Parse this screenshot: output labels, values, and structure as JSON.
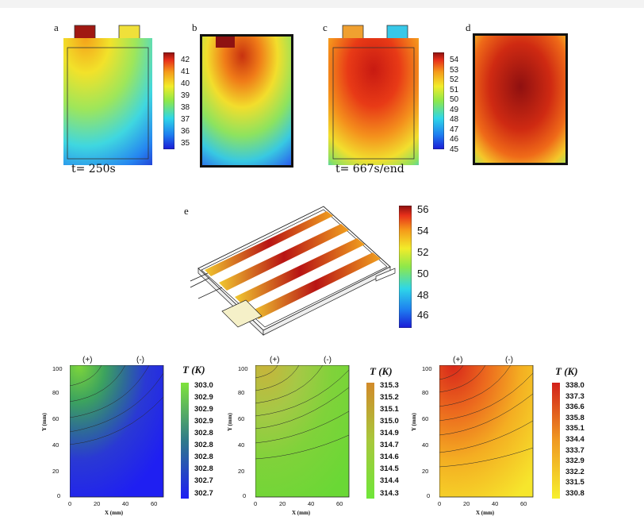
{
  "panels_top": [
    {
      "label": "a",
      "time": "t= 250s"
    },
    {
      "label": "b"
    },
    {
      "label": "c",
      "time": "t= 667s/end"
    },
    {
      "label": "d"
    }
  ],
  "colorbar_ab": {
    "ticks": [
      "42",
      "41",
      "40",
      "39",
      "38",
      "37",
      "36",
      "35"
    ]
  },
  "colorbar_cd": {
    "ticks": [
      "54",
      "53",
      "52",
      "51",
      "50",
      "49",
      "48",
      "47",
      "46",
      "45"
    ]
  },
  "panel_e": {
    "label": "e",
    "colorbar_ticks": [
      "56",
      "54",
      "52",
      "50",
      "48",
      "46"
    ]
  },
  "contour_plots": [
    {
      "pos_terminal": "(+)",
      "neg_terminal": "(-)",
      "ylabel": "Y (mm)",
      "xlabel": "X (mm)",
      "yticks": [
        "100",
        "80",
        "60",
        "40",
        "20",
        "0"
      ],
      "xticks": [
        "0",
        "20",
        "40",
        "60"
      ],
      "cb_title": "T (K)",
      "cb_ticks": [
        "303.0",
        "302.9",
        "302.9",
        "302.9",
        "302.8",
        "302.8",
        "302.8",
        "302.8",
        "302.7",
        "302.7"
      ]
    },
    {
      "pos_terminal": "(+)",
      "neg_terminal": "(-)",
      "ylabel": "Y (mm)",
      "xlabel": "X (mm)",
      "yticks": [
        "100",
        "80",
        "60",
        "40",
        "20",
        "0"
      ],
      "xticks": [
        "0",
        "20",
        "40",
        "60"
      ],
      "cb_title": "T (K)",
      "cb_ticks": [
        "315.3",
        "315.2",
        "315.1",
        "315.0",
        "314.9",
        "314.7",
        "314.6",
        "314.5",
        "314.4",
        "314.3"
      ]
    },
    {
      "pos_terminal": "(+)",
      "neg_terminal": "(-)",
      "ylabel": "Y (mm)",
      "xlabel": "X (mm)",
      "yticks": [
        "100",
        "80",
        "60",
        "40",
        "20",
        "0"
      ],
      "xticks": [
        "0",
        "20",
        "40",
        "60"
      ],
      "cb_title": "T (K)",
      "cb_ticks": [
        "338.0",
        "337.3",
        "336.6",
        "335.8",
        "335.1",
        "334.4",
        "333.7",
        "332.9",
        "332.2",
        "331.5",
        "330.8"
      ]
    }
  ]
}
